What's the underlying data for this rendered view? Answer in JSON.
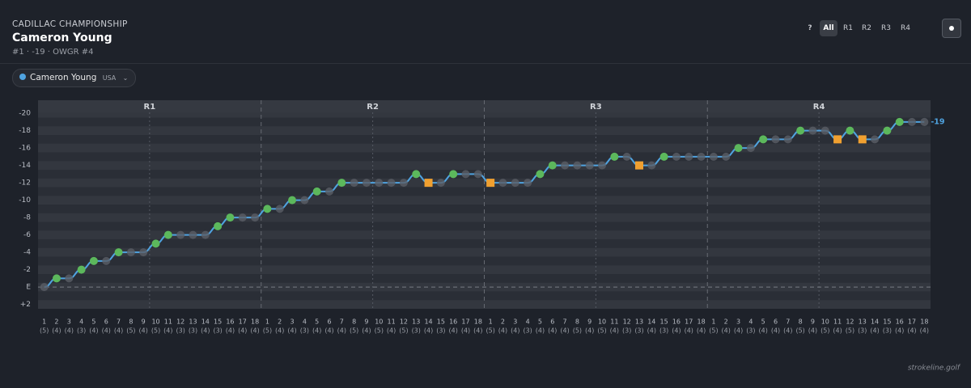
{
  "header": {
    "event": "CADILLAC CHAMPIONSHIP",
    "player": "Cameron Young",
    "subtitle": "#1 · -19 · OWGR #4"
  },
  "toolbar": [
    "?",
    "All",
    "R1",
    "R2",
    "R3",
    "R4"
  ],
  "footer": "strokeline.golf",
  "chart_data": {
    "type": "line",
    "rounds": [
      "R1",
      "R2",
      "R3",
      "R4"
    ],
    "categories": [
      "1",
      "2",
      "3",
      "4",
      "5",
      "6",
      "7",
      "8",
      "9",
      "10",
      "11",
      "12",
      "13",
      "14",
      "15",
      "16",
      "17",
      "18",
      "1",
      "2",
      "3",
      "4",
      "5",
      "6",
      "7",
      "8",
      "9",
      "10",
      "11",
      "12",
      "13",
      "14",
      "15",
      "16",
      "17",
      "18",
      "1",
      "2",
      "3",
      "4",
      "5",
      "6",
      "7",
      "8",
      "9",
      "10",
      "11",
      "12",
      "13",
      "14",
      "15",
      "16",
      "17",
      "18",
      "1",
      "2",
      "3",
      "4",
      "5",
      "6",
      "7",
      "8",
      "9",
      "10",
      "11",
      "12",
      "13",
      "14",
      "15",
      "16",
      "17",
      "18"
    ],
    "pars": [
      "(5)",
      "(4)",
      "(4)",
      "(3)",
      "(4)",
      "(4)",
      "(4)",
      "(5)",
      "(4)",
      "(5)",
      "(4)",
      "(3)",
      "(3)",
      "(4)",
      "(3)",
      "(4)",
      "(4)",
      "(4)",
      "(5)",
      "(4)",
      "(4)",
      "(3)",
      "(4)",
      "(4)",
      "(4)",
      "(5)",
      "(4)",
      "(5)",
      "(4)",
      "(5)",
      "(3)",
      "(4)",
      "(3)",
      "(4)",
      "(4)",
      "(4)",
      "(5)",
      "(4)",
      "(4)",
      "(3)",
      "(4)",
      "(4)",
      "(4)",
      "(5)",
      "(4)",
      "(5)",
      "(4)",
      "(3)",
      "(3)",
      "(4)",
      "(3)",
      "(4)",
      "(4)",
      "(4)",
      "(5)",
      "(4)",
      "(4)",
      "(3)",
      "(4)",
      "(4)",
      "(4)",
      "(5)",
      "(4)",
      "(5)",
      "(4)",
      "(5)",
      "(3)",
      "(4)",
      "(3)",
      "(4)",
      "(4)",
      "(4)"
    ],
    "series": [
      {
        "name": "Cameron Young",
        "country": "USA",
        "color": "#4fa3e0",
        "values": [
          0,
          -1,
          -1,
          -2,
          -3,
          -3,
          -4,
          -4,
          -4,
          -5,
          -6,
          -6,
          -6,
          -6,
          -7,
          -8,
          -8,
          -8,
          -9,
          -9,
          -10,
          -10,
          -11,
          -11,
          -12,
          -12,
          -12,
          -12,
          -12,
          -12,
          -13,
          -12,
          -12,
          -13,
          -13,
          -13,
          -12,
          -12,
          -12,
          -12,
          -13,
          -14,
          -14,
          -14,
          -14,
          -14,
          -15,
          -15,
          -14,
          -14,
          -15,
          -15,
          -15,
          -15,
          -15,
          -15,
          -16,
          -16,
          -17,
          -17,
          -17,
          -18,
          -18,
          -18,
          -17,
          -18,
          -17,
          -17,
          -18,
          -19,
          -19,
          -19
        ]
      }
    ],
    "marker_colors": {
      "under": "#5cb85c",
      "even": "#5a5e66",
      "over": "#f0a030"
    },
    "ylim": [
      2.5,
      -21.5
    ],
    "yticks": [
      -20,
      -18,
      -16,
      -14,
      -12,
      -10,
      -8,
      -6,
      -4,
      -2,
      {
        "value": 0,
        "label": "E"
      },
      {
        "value": 2,
        "label": "+2"
      }
    ],
    "reference_line": 0
  }
}
